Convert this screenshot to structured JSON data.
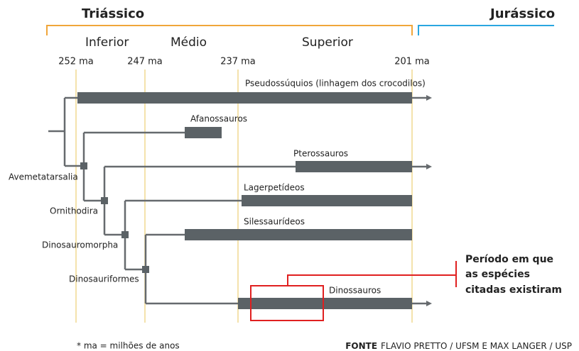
{
  "periods": [
    "Triássico",
    "Jurássico"
  ],
  "epochs": [
    "Inferior",
    "Médio",
    "Superior"
  ],
  "time_labels": [
    "252 ma",
    "247 ma",
    "237 ma",
    "201 ma"
  ],
  "taxa": [
    "Pseudossúquios (linhagem dos crocodilos)",
    "Afanossauros",
    "Pterossauros",
    "Lagerpetídeos",
    "Silessaurídeos",
    "Dinossauros"
  ],
  "nodes": [
    "Avemetatarsalia",
    "Ornithodira",
    "Dinosauromorpha",
    "Dinosauriformes"
  ],
  "annotation": [
    "Período em que",
    "as espécies",
    "citadas existiram"
  ],
  "footnote": "* ma = milhões de anos",
  "source": {
    "label": "FONTE",
    "text": "FLAVIO PRETTO / UFSM E MAX LANGER / USP"
  }
}
